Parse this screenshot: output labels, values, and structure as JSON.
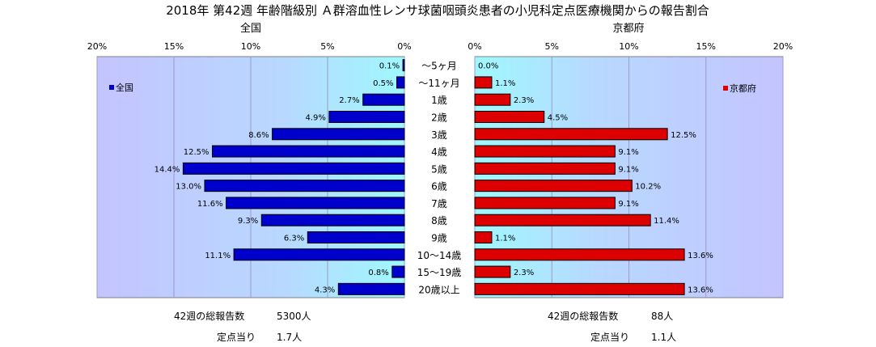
{
  "title": "2018年 第42週 年齢階級別 Ａ群溶血性レンサ球菌咽頭炎患者の小児科定点医療機関からの報告割合",
  "chart_data": [
    {
      "type": "bar",
      "orientation": "horizontal",
      "title": "全国",
      "legend": "全国",
      "legend_position": "top-left",
      "bar_color": "#0000cc",
      "plot_background": "#b8b8ff",
      "xlim": [
        0,
        20
      ],
      "x_ticks": [
        "20%",
        "15%",
        "10%",
        "5%",
        "0%"
      ],
      "reversed": true,
      "grid": true,
      "categories": [
        "〜5ヶ月",
        "〜11ヶ月",
        "1歳",
        "2歳",
        "3歳",
        "4歳",
        "5歳",
        "6歳",
        "7歳",
        "8歳",
        "9歳",
        "10〜14歳",
        "15〜19歳",
        "20歳以上"
      ],
      "values": [
        0.1,
        0.5,
        2.7,
        4.9,
        8.6,
        12.5,
        14.4,
        13.0,
        11.6,
        9.3,
        6.3,
        11.1,
        0.8,
        4.3
      ],
      "data_labels": [
        "0.1%",
        "0.5%",
        "2.7%",
        "4.9%",
        "8.6%",
        "12.5%",
        "14.4%",
        "13.0%",
        "11.6%",
        "9.3%",
        "6.3%",
        "11.1%",
        "0.8%",
        "4.3%"
      ]
    },
    {
      "type": "bar",
      "orientation": "horizontal",
      "title": "京都府",
      "legend": "京都府",
      "legend_position": "top-right",
      "bar_color": "#dd0000",
      "plot_background": "#b8b8ff",
      "xlim": [
        0,
        20
      ],
      "x_ticks": [
        "0%",
        "5%",
        "10%",
        "15%",
        "20%"
      ],
      "reversed": false,
      "grid": true,
      "categories": [
        "〜5ヶ月",
        "〜11ヶ月",
        "1歳",
        "2歳",
        "3歳",
        "4歳",
        "5歳",
        "6歳",
        "7歳",
        "8歳",
        "9歳",
        "10〜14歳",
        "15〜19歳",
        "20歳以上"
      ],
      "values": [
        0.0,
        1.1,
        2.3,
        4.5,
        12.5,
        9.1,
        9.1,
        10.2,
        9.1,
        11.4,
        1.1,
        13.6,
        2.3,
        13.6
      ],
      "data_labels": [
        "0.0%",
        "1.1%",
        "2.3%",
        "4.5%",
        "12.5%",
        "9.1%",
        "9.1%",
        "10.2%",
        "9.1%",
        "11.4%",
        "1.1%",
        "13.6%",
        "2.3%",
        "13.6%"
      ]
    }
  ],
  "footer": {
    "national_total_label": "42週の総報告数",
    "national_total_value": "5300人",
    "national_per_label": "定点当り",
    "national_per_value": "1.7人",
    "kyoto_total_label": "42週の総報告数",
    "kyoto_total_value": "88人",
    "kyoto_per_label": "定点当り",
    "kyoto_per_value": "1.1人"
  }
}
